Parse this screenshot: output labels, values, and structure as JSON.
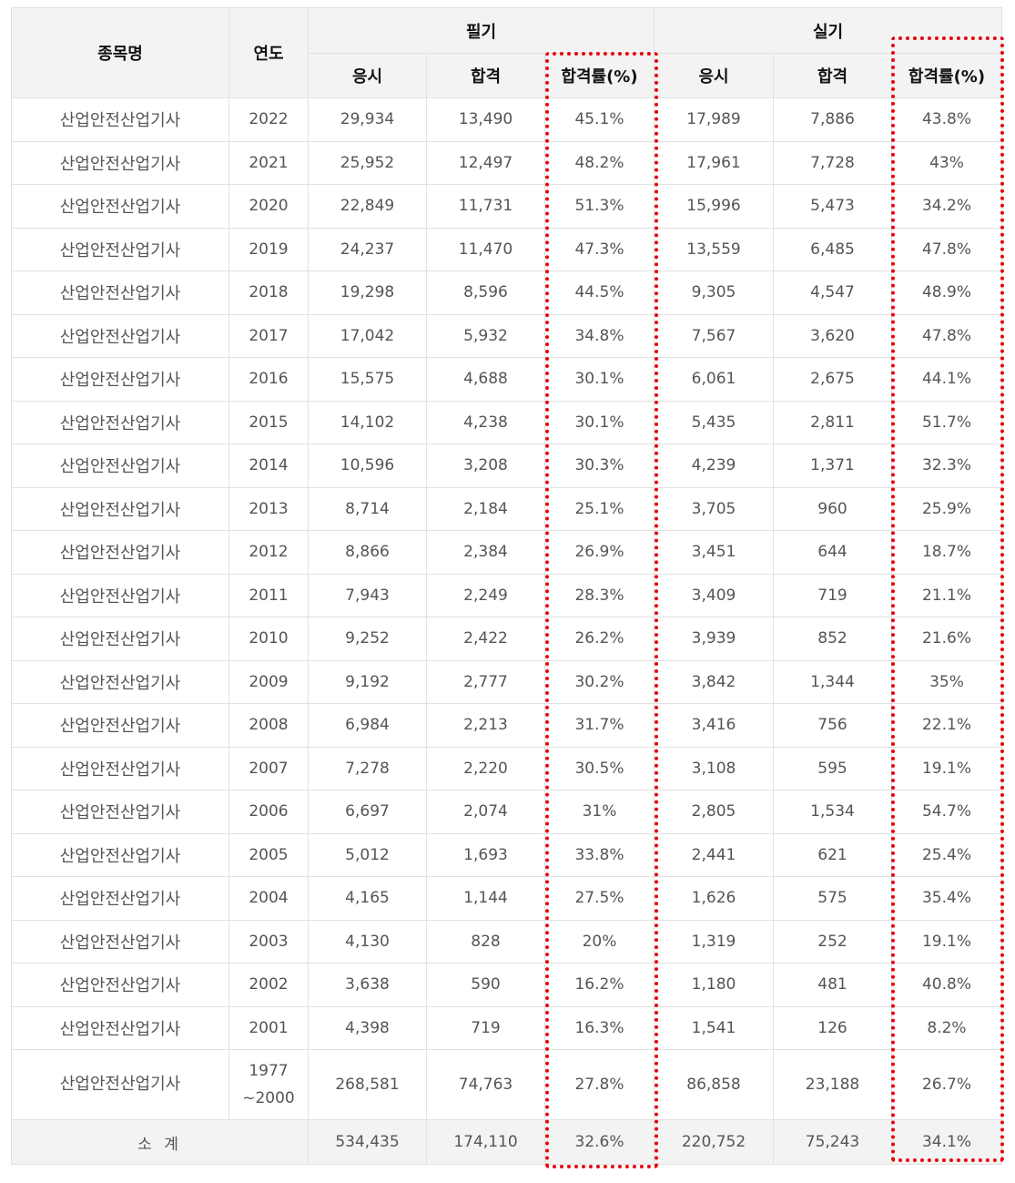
{
  "header": {
    "name_label": "종목명",
    "year_label": "연도",
    "written_label": "필기",
    "practical_label": "실기",
    "applicants_label": "응시",
    "passed_label": "합격",
    "rate_label": "합격률(%)"
  },
  "rows": [
    {
      "name": "산업안전산업기사",
      "year": "2022",
      "w_app": "29,934",
      "w_pass": "13,490",
      "w_rate": "45.1%",
      "p_app": "17,989",
      "p_pass": "7,886",
      "p_rate": "43.8%"
    },
    {
      "name": "산업안전산업기사",
      "year": "2021",
      "w_app": "25,952",
      "w_pass": "12,497",
      "w_rate": "48.2%",
      "p_app": "17,961",
      "p_pass": "7,728",
      "p_rate": "43%"
    },
    {
      "name": "산업안전산업기사",
      "year": "2020",
      "w_app": "22,849",
      "w_pass": "11,731",
      "w_rate": "51.3%",
      "p_app": "15,996",
      "p_pass": "5,473",
      "p_rate": "34.2%"
    },
    {
      "name": "산업안전산업기사",
      "year": "2019",
      "w_app": "24,237",
      "w_pass": "11,470",
      "w_rate": "47.3%",
      "p_app": "13,559",
      "p_pass": "6,485",
      "p_rate": "47.8%"
    },
    {
      "name": "산업안전산업기사",
      "year": "2018",
      "w_app": "19,298",
      "w_pass": "8,596",
      "w_rate": "44.5%",
      "p_app": "9,305",
      "p_pass": "4,547",
      "p_rate": "48.9%"
    },
    {
      "name": "산업안전산업기사",
      "year": "2017",
      "w_app": "17,042",
      "w_pass": "5,932",
      "w_rate": "34.8%",
      "p_app": "7,567",
      "p_pass": "3,620",
      "p_rate": "47.8%"
    },
    {
      "name": "산업안전산업기사",
      "year": "2016",
      "w_app": "15,575",
      "w_pass": "4,688",
      "w_rate": "30.1%",
      "p_app": "6,061",
      "p_pass": "2,675",
      "p_rate": "44.1%"
    },
    {
      "name": "산업안전산업기사",
      "year": "2015",
      "w_app": "14,102",
      "w_pass": "4,238",
      "w_rate": "30.1%",
      "p_app": "5,435",
      "p_pass": "2,811",
      "p_rate": "51.7%"
    },
    {
      "name": "산업안전산업기사",
      "year": "2014",
      "w_app": "10,596",
      "w_pass": "3,208",
      "w_rate": "30.3%",
      "p_app": "4,239",
      "p_pass": "1,371",
      "p_rate": "32.3%"
    },
    {
      "name": "산업안전산업기사",
      "year": "2013",
      "w_app": "8,714",
      "w_pass": "2,184",
      "w_rate": "25.1%",
      "p_app": "3,705",
      "p_pass": "960",
      "p_rate": "25.9%"
    },
    {
      "name": "산업안전산업기사",
      "year": "2012",
      "w_app": "8,866",
      "w_pass": "2,384",
      "w_rate": "26.9%",
      "p_app": "3,451",
      "p_pass": "644",
      "p_rate": "18.7%"
    },
    {
      "name": "산업안전산업기사",
      "year": "2011",
      "w_app": "7,943",
      "w_pass": "2,249",
      "w_rate": "28.3%",
      "p_app": "3,409",
      "p_pass": "719",
      "p_rate": "21.1%"
    },
    {
      "name": "산업안전산업기사",
      "year": "2010",
      "w_app": "9,252",
      "w_pass": "2,422",
      "w_rate": "26.2%",
      "p_app": "3,939",
      "p_pass": "852",
      "p_rate": "21.6%"
    },
    {
      "name": "산업안전산업기사",
      "year": "2009",
      "w_app": "9,192",
      "w_pass": "2,777",
      "w_rate": "30.2%",
      "p_app": "3,842",
      "p_pass": "1,344",
      "p_rate": "35%"
    },
    {
      "name": "산업안전산업기사",
      "year": "2008",
      "w_app": "6,984",
      "w_pass": "2,213",
      "w_rate": "31.7%",
      "p_app": "3,416",
      "p_pass": "756",
      "p_rate": "22.1%"
    },
    {
      "name": "산업안전산업기사",
      "year": "2007",
      "w_app": "7,278",
      "w_pass": "2,220",
      "w_rate": "30.5%",
      "p_app": "3,108",
      "p_pass": "595",
      "p_rate": "19.1%"
    },
    {
      "name": "산업안전산업기사",
      "year": "2006",
      "w_app": "6,697",
      "w_pass": "2,074",
      "w_rate": "31%",
      "p_app": "2,805",
      "p_pass": "1,534",
      "p_rate": "54.7%"
    },
    {
      "name": "산업안전산업기사",
      "year": "2005",
      "w_app": "5,012",
      "w_pass": "1,693",
      "w_rate": "33.8%",
      "p_app": "2,441",
      "p_pass": "621",
      "p_rate": "25.4%"
    },
    {
      "name": "산업안전산업기사",
      "year": "2004",
      "w_app": "4,165",
      "w_pass": "1,144",
      "w_rate": "27.5%",
      "p_app": "1,626",
      "p_pass": "575",
      "p_rate": "35.4%"
    },
    {
      "name": "산업안전산업기사",
      "year": "2003",
      "w_app": "4,130",
      "w_pass": "828",
      "w_rate": "20%",
      "p_app": "1,319",
      "p_pass": "252",
      "p_rate": "19.1%"
    },
    {
      "name": "산업안전산업기사",
      "year": "2002",
      "w_app": "3,638",
      "w_pass": "590",
      "w_rate": "16.2%",
      "p_app": "1,180",
      "p_pass": "481",
      "p_rate": "40.8%"
    },
    {
      "name": "산업안전산업기사",
      "year": "2001",
      "w_app": "4,398",
      "w_pass": "719",
      "w_rate": "16.3%",
      "p_app": "1,541",
      "p_pass": "126",
      "p_rate": "8.2%"
    }
  ],
  "early_row": {
    "name": "산업안전산업기사",
    "year_line1": "1977",
    "year_line2": "~2000",
    "w_app": "268,581",
    "w_pass": "74,763",
    "w_rate": "27.8%",
    "p_app": "86,858",
    "p_pass": "23,188",
    "p_rate": "26.7%"
  },
  "total": {
    "label": "소 계",
    "w_app": "534,435",
    "w_pass": "174,110",
    "w_rate": "32.6%",
    "p_app": "220,752",
    "p_pass": "75,243",
    "p_rate": "34.1%"
  },
  "colors": {
    "highlight": "#e8000b",
    "header_bg": "#f3f3f3",
    "border": "#e1e1e1"
  }
}
